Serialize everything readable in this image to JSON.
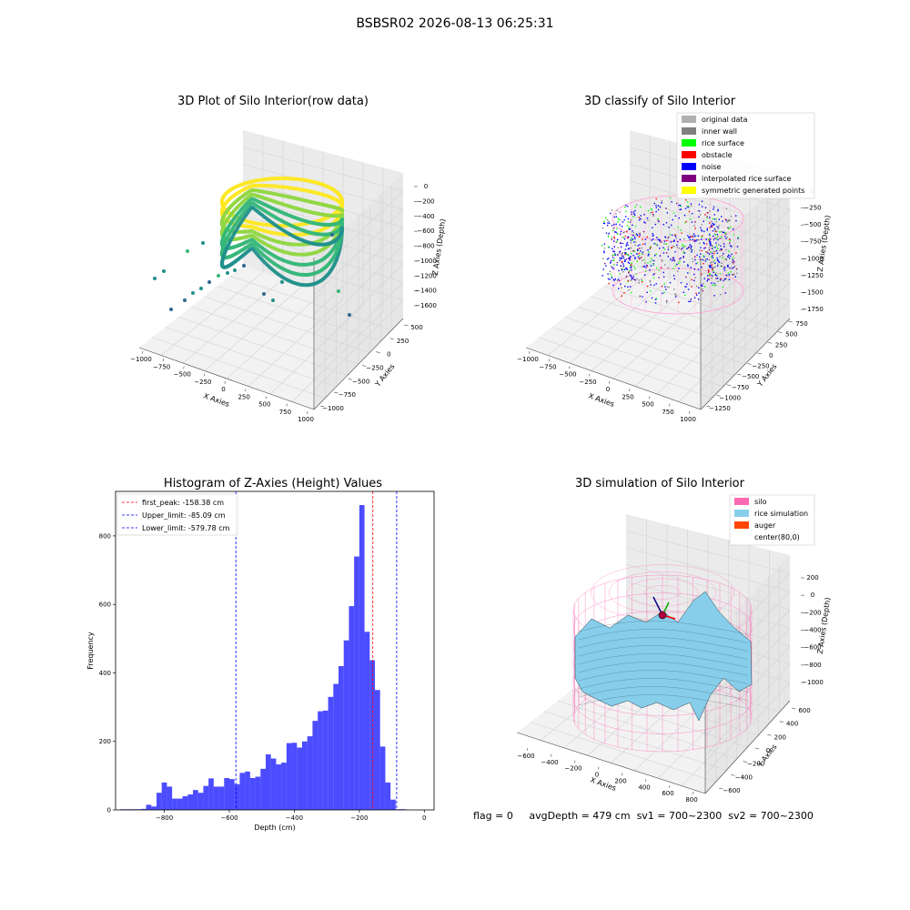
{
  "suptitle": "BSBSR02 2026-08-13 06:25:31",
  "footer": {
    "flag": "flag = 0",
    "avg_depth": "avgDepth = 479 cm",
    "sv1": "sv1 = 700~2300",
    "sv2": "sv2 = 700~2300"
  },
  "chart_data": [
    {
      "type": "scatter",
      "title": "3D Plot of Silo Interior(row data)",
      "xlabel": "X Axies",
      "ylabel": "Y Axies",
      "zlabel": "Z Axies (Depth)",
      "x_ticks": [
        "−1000",
        "−750",
        "−500",
        "−250",
        "0",
        "250",
        "500",
        "750",
        "1000"
      ],
      "y_ticks": [
        "−1000",
        "−750",
        "−500",
        "−250",
        "0",
        "250",
        "500"
      ],
      "z_ticks": [
        "0",
        "−200",
        "−400",
        "−600",
        "−800",
        "−1000",
        "−1200",
        "−1400",
        "−1600"
      ],
      "colormap": [
        "#440154",
        "#31688e",
        "#21918c",
        "#35b779",
        "#90d743",
        "#fde725"
      ]
    },
    {
      "type": "scatter",
      "title": "3D classify of Silo Interior",
      "xlabel": "X Axies",
      "ylabel": "Y Axies",
      "zlabel": "Z Axies (Depth)",
      "x_ticks": [
        "−1000",
        "−750",
        "−500",
        "−250",
        "0",
        "250",
        "500",
        "750",
        "1000"
      ],
      "y_ticks": [
        "−1250",
        "−1000",
        "−750",
        "−500",
        "−250",
        "0",
        "250",
        "500",
        "750"
      ],
      "z_ticks": [
        "0",
        "−250",
        "−500",
        "−750",
        "−1000",
        "−1250",
        "−1500",
        "−1750"
      ],
      "legend_position": "top-right",
      "legend": [
        {
          "name": "original data",
          "color": "#b0b0b0"
        },
        {
          "name": "inner wall",
          "color": "#808080"
        },
        {
          "name": "rice surface",
          "color": "#00ff00"
        },
        {
          "name": "obstacle",
          "color": "#ff0000"
        },
        {
          "name": "noise",
          "color": "#0000ff"
        },
        {
          "name": "interpolated rice surface",
          "color": "#800080"
        },
        {
          "name": "symmetric generated points",
          "color": "#ffff00"
        }
      ]
    },
    {
      "type": "bar",
      "title": "Histogram of Z-Axies (Height) Values",
      "xlabel": "Depth (cm)",
      "ylabel": "Frequency",
      "xlim": [
        -950,
        30
      ],
      "ylim": [
        0,
        930
      ],
      "x_ticks": [
        -800,
        -600,
        -400,
        -200,
        0
      ],
      "x_tick_labels": [
        "−800",
        "−600",
        "−400",
        "−200",
        "0"
      ],
      "y_ticks": [
        0,
        200,
        400,
        600,
        800
      ],
      "bar_color": "#0000ff",
      "bin_width": 16,
      "bins": [
        [
          -936,
          2
        ],
        [
          -920,
          2
        ],
        [
          -904,
          2
        ],
        [
          -888,
          2
        ],
        [
          -872,
          3
        ],
        [
          -856,
          15
        ],
        [
          -840,
          10
        ],
        [
          -824,
          50
        ],
        [
          -808,
          80
        ],
        [
          -792,
          68
        ],
        [
          -776,
          33
        ],
        [
          -760,
          33
        ],
        [
          -744,
          40
        ],
        [
          -728,
          45
        ],
        [
          -712,
          58
        ],
        [
          -696,
          50
        ],
        [
          -680,
          70
        ],
        [
          -664,
          92
        ],
        [
          -648,
          68
        ],
        [
          -632,
          68
        ],
        [
          -616,
          93
        ],
        [
          -600,
          90
        ],
        [
          -584,
          75
        ],
        [
          -568,
          108
        ],
        [
          -552,
          112
        ],
        [
          -536,
          93
        ],
        [
          -520,
          97
        ],
        [
          -504,
          120
        ],
        [
          -488,
          162
        ],
        [
          -472,
          150
        ],
        [
          -456,
          133
        ],
        [
          -440,
          138
        ],
        [
          -424,
          195
        ],
        [
          -408,
          196
        ],
        [
          -392,
          182
        ],
        [
          -376,
          200
        ],
        [
          -360,
          215
        ],
        [
          -344,
          260
        ],
        [
          -328,
          288
        ],
        [
          -312,
          290
        ],
        [
          -296,
          330
        ],
        [
          -280,
          368
        ],
        [
          -264,
          420
        ],
        [
          -248,
          495
        ],
        [
          -232,
          595
        ],
        [
          -216,
          740
        ],
        [
          -200,
          890
        ],
        [
          -184,
          520
        ],
        [
          -168,
          437
        ],
        [
          -152,
          350
        ],
        [
          -136,
          185
        ],
        [
          -120,
          80
        ],
        [
          -104,
          30
        ],
        [
          -88,
          2
        ],
        [
          -72,
          2
        ]
      ],
      "vlines": [
        {
          "label": "first_peak: -158.38 cm",
          "x": -158.38,
          "color": "#ff0000"
        },
        {
          "label": "Upper_limit: -85.09 cm",
          "x": -85.09,
          "color": "#0000ff"
        },
        {
          "label": "Lower_limit: -579.78 cm",
          "x": -579.78,
          "color": "#0000ff"
        }
      ],
      "legend_position": "top-left"
    },
    {
      "type": "area",
      "title": "3D simulation of Silo Interior",
      "xlabel": "X Axies",
      "ylabel": "Y Axies",
      "zlabel": "Z Axies (Depth)",
      "x_ticks": [
        "−600",
        "−400",
        "−200",
        "0",
        "200",
        "400",
        "600",
        "800"
      ],
      "y_ticks": [
        "−600",
        "−400",
        "−200",
        "0",
        "200",
        "400",
        "600"
      ],
      "z_ticks": [
        "200",
        "0",
        "−200",
        "−400",
        "−600",
        "−800",
        "−1000"
      ],
      "legend_position": "top-right",
      "legend": [
        {
          "name": "silo",
          "color": "#ff69b4"
        },
        {
          "name": "rice simulation",
          "color": "#87ceeb"
        },
        {
          "name": "auger",
          "color": "#ff4500"
        },
        {
          "name": "center(80,0)",
          "color": "#ffffff"
        }
      ]
    }
  ]
}
